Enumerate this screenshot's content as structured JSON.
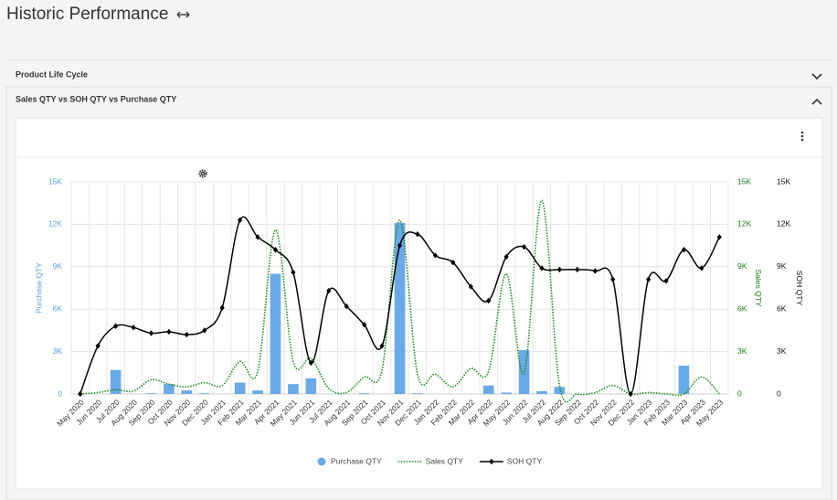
{
  "header": {
    "title": "Historic Performance"
  },
  "sections": [
    {
      "title": "Product Life Cycle"
    },
    {
      "title": "Sales QTY vs SOH QTY vs Purchase QTY"
    }
  ],
  "chart_data": {
    "type": "combo",
    "categories": [
      "May 2020",
      "Jun 2020",
      "Jul 2020",
      "Aug 2020",
      "Sep 2020",
      "Oct 2020",
      "Nov 2020",
      "Dec 2020",
      "Jan 2021",
      "Feb 2021",
      "Mar 2021",
      "Apr 2021",
      "May 2021",
      "Jun 2021",
      "Jul 2021",
      "Aug 2021",
      "Sep 2021",
      "Oct 2021",
      "Nov 2021",
      "Dec 2021",
      "Jan 2022",
      "Feb 2022",
      "Mar 2022",
      "Apr 2022",
      "May 2022",
      "Jun 2022",
      "Jul 2022",
      "Aug 2022",
      "Sep 2022",
      "Oct 2022",
      "Nov 2022",
      "Dec 2022",
      "Jan 2023",
      "Feb 2023",
      "Mar 2023",
      "Apr 2023",
      "May 2023"
    ],
    "series": [
      {
        "name": "Purchase QTY",
        "type": "bar",
        "axis": "y",
        "color": "#6aa9e6",
        "values": [
          0,
          0,
          1700,
          0,
          50,
          700,
          250,
          50,
          0,
          800,
          250,
          8500,
          700,
          1100,
          0,
          0,
          50,
          0,
          12100,
          50,
          0,
          0,
          0,
          600,
          100,
          3100,
          200,
          500,
          0,
          0,
          0,
          0,
          0,
          0,
          2000,
          0,
          0
        ]
      },
      {
        "name": "Sales QTY",
        "type": "line",
        "axis": "y2",
        "color": "#1f8a1f",
        "dash": "dotted",
        "values": [
          0,
          100,
          300,
          200,
          1000,
          700,
          500,
          800,
          600,
          2300,
          1600,
          11600,
          2300,
          2500,
          400,
          100,
          1200,
          1700,
          12300,
          1400,
          1400,
          500,
          1800,
          1600,
          8500,
          1500,
          13700,
          600,
          0,
          100,
          600,
          0,
          100,
          0,
          0,
          1200,
          0
        ]
      },
      {
        "name": "SOH QTY",
        "type": "line",
        "axis": "y3",
        "color": "#000000",
        "marker": "diamond",
        "values": [
          0,
          3400,
          4800,
          4700,
          4300,
          4400,
          4200,
          4500,
          6100,
          12300,
          11100,
          10200,
          8600,
          2200,
          7300,
          6200,
          4900,
          3400,
          10500,
          11300,
          9800,
          9300,
          7600,
          6600,
          9700,
          10400,
          8900,
          8800,
          8800,
          8700,
          8100,
          0,
          8100,
          8000,
          10200,
          8900,
          11100
        ]
      }
    ],
    "ylabel": "Purchase QTY",
    "y2label": "Sales QTY",
    "y3label": "SOH QTY",
    "ylim": [
      0,
      15000
    ],
    "y2lim": [
      0,
      15000
    ],
    "y3lim": [
      0,
      15000
    ],
    "yticks": [
      0,
      {
        "value": 3000,
        "label": "3K"
      },
      {
        "value": 6000,
        "label": "6K"
      },
      {
        "value": 9000,
        "label": "9K"
      },
      {
        "value": 12000,
        "label": "12K"
      },
      {
        "value": 15000,
        "label": "15K"
      }
    ],
    "y2ticks": [
      0,
      {
        "value": 3000,
        "label": "3K"
      },
      {
        "value": 6000,
        "label": "6K"
      },
      {
        "value": 9000,
        "label": "9K"
      },
      {
        "value": 12000,
        "label": "12K"
      },
      {
        "value": 15000,
        "label": "15K"
      }
    ],
    "y3ticks": [
      0,
      {
        "value": 3000,
        "label": "3K"
      },
      {
        "value": 6000,
        "label": "6K"
      },
      {
        "value": 9000,
        "label": "9K"
      },
      {
        "value": 12000,
        "label": "12K"
      },
      {
        "value": 15000,
        "label": "15K"
      }
    ],
    "grid": true,
    "legend": "bottom"
  }
}
